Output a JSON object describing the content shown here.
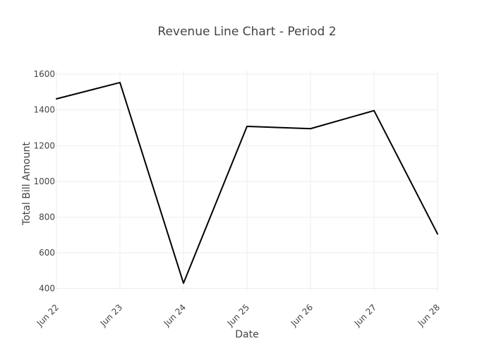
{
  "chart_data": {
    "type": "line",
    "title": "Revenue Line Chart - Period 2",
    "xlabel": "Date",
    "ylabel": "Total Bill Amount",
    "x": [
      "Jun 22",
      "Jun 23",
      "Jun 24",
      "Jun 25",
      "Jun 26",
      "Jun 27",
      "Jun 28"
    ],
    "series": [
      {
        "values": [
          1462,
          1553,
          430,
          1308,
          1295,
          1396,
          706
        ]
      }
    ],
    "yticks": [
      400,
      600,
      800,
      1000,
      1200,
      1400,
      1600
    ],
    "ytick_labels": [
      "400",
      "600",
      "800",
      "1000",
      "1200",
      "1400",
      "1600"
    ],
    "ylim": [
      387,
      1620
    ],
    "grid": true,
    "legend": false,
    "colors": {
      "line": "#000000",
      "grid": "#eeeeee",
      "text": "#444444",
      "background": "#ffffff"
    }
  }
}
